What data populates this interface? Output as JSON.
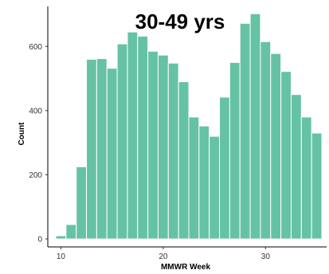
{
  "chart_data": {
    "type": "bar",
    "title": "30-49 yrs",
    "xlabel": "MMWR Week",
    "ylabel": "Count",
    "bin_edges_note": "",
    "x": [
      10,
      11,
      12,
      13,
      14,
      15,
      16,
      17,
      18,
      19,
      20,
      21,
      22,
      23,
      24,
      25,
      26,
      27,
      28,
      29,
      30,
      31,
      32,
      33,
      34,
      35
    ],
    "values": [
      10,
      45,
      225,
      560,
      562,
      532,
      608,
      645,
      632,
      585,
      573,
      548,
      490,
      380,
      352,
      320,
      442,
      550,
      672,
      702,
      615,
      578,
      522,
      450,
      380,
      330
    ],
    "x_ticks": [
      10,
      20,
      30
    ],
    "y_ticks": [
      0,
      200,
      400,
      600
    ],
    "xlim": [
      9.5,
      35.5
    ],
    "ylim": [
      0,
      700
    ],
    "grid": false,
    "bar_color": "#66C2A5"
  }
}
